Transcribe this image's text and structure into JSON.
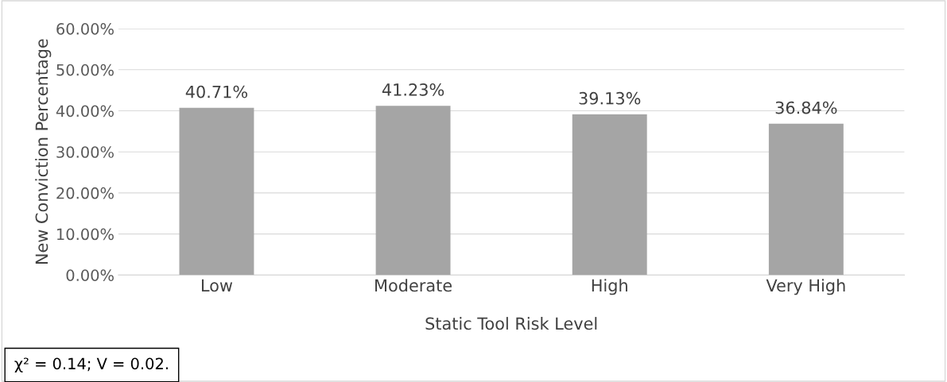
{
  "chart_data": {
    "type": "bar",
    "xlabel": "Static Tool Risk Level",
    "ylabel": "New Conviction Percentage",
    "categories": [
      "Low",
      "Moderate",
      "High",
      "Very High"
    ],
    "values": [
      40.71,
      41.23,
      39.13,
      36.84
    ],
    "color": "#a5a5a5",
    "value_labels": [
      "40.71%",
      "41.23%",
      "39.13%",
      "36.84%"
    ],
    "ylim": [
      0,
      60
    ],
    "yticks": [
      {
        "value": 0,
        "label": "0.00%"
      },
      {
        "value": 10,
        "label": "10.00%"
      },
      {
        "value": 20,
        "label": "20.00%"
      },
      {
        "value": 30,
        "label": "30.00%"
      },
      {
        "value": 40,
        "label": "40.00%"
      },
      {
        "value": 50,
        "label": "50.00%"
      },
      {
        "value": 60,
        "label": "60.00%"
      }
    ],
    "grid": "y",
    "annotations": [
      "χ² = 0.14; V = 0.02."
    ]
  }
}
